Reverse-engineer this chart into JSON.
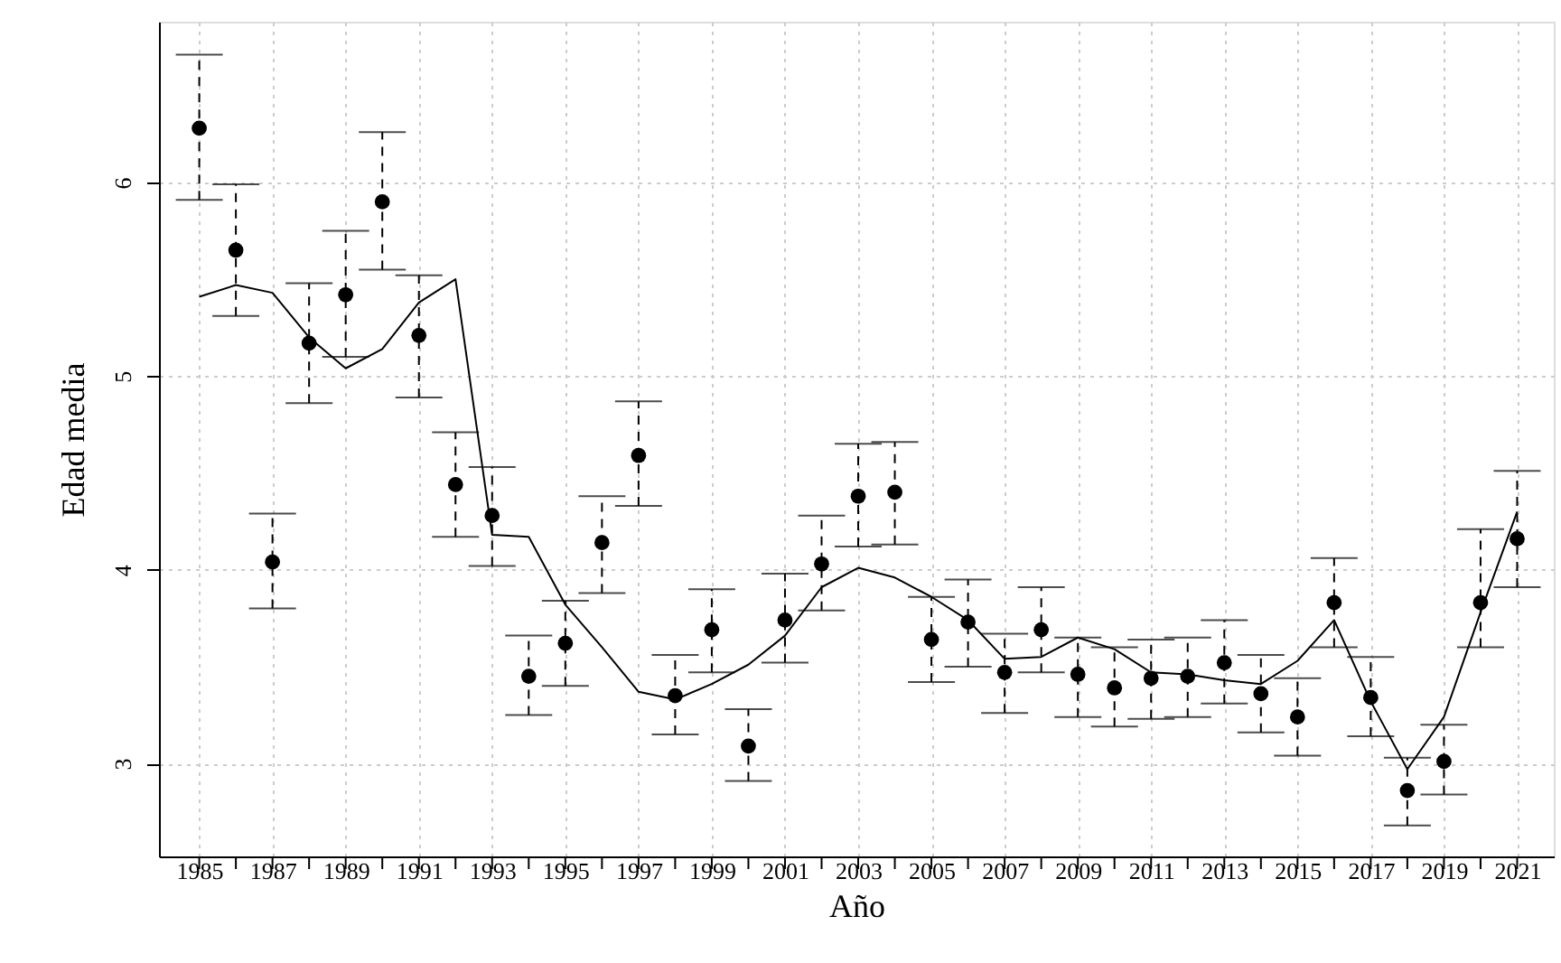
{
  "chart_data": {
    "type": "scatter",
    "xlabel": "Año",
    "ylabel": "Edad media",
    "x": [
      1985,
      1986,
      1987,
      1988,
      1989,
      1990,
      1991,
      1992,
      1993,
      1994,
      1995,
      1996,
      1997,
      1998,
      1999,
      2000,
      2001,
      2002,
      2003,
      2004,
      2005,
      2006,
      2007,
      2008,
      2009,
      2010,
      2011,
      2012,
      2013,
      2014,
      2015,
      2016,
      2017,
      2018,
      2019,
      2020,
      2021
    ],
    "xlim": [
      1983.9,
      2022
    ],
    "ylim": [
      2.52,
      6.83
    ],
    "xticks": [
      1985,
      {
        "value": 1986,
        "label": null
      },
      1987,
      {
        "value": 1988,
        "label": null
      },
      1989,
      {
        "value": 1990,
        "label": null
      },
      1991,
      {
        "value": 1992,
        "label": null
      },
      1993,
      {
        "value": 1994,
        "label": null
      },
      1995,
      {
        "value": 1996,
        "label": null
      },
      1997,
      {
        "value": 1998,
        "label": null
      },
      1999,
      {
        "value": 2000,
        "label": null
      },
      2001,
      {
        "value": 2002,
        "label": null
      },
      2003,
      {
        "value": 2004,
        "label": null
      },
      2005,
      {
        "value": 2006,
        "label": null
      },
      2007,
      {
        "value": 2008,
        "label": null
      },
      2009,
      {
        "value": 2010,
        "label": null
      },
      2011,
      {
        "value": 2012,
        "label": null
      },
      2013,
      {
        "value": 2014,
        "label": null
      },
      2015,
      {
        "value": 2016,
        "label": null
      },
      2017,
      {
        "value": 2018,
        "label": null
      },
      2019,
      {
        "value": 2020,
        "label": null
      },
      2021
    ],
    "yticks": [
      3,
      4,
      5,
      6
    ],
    "grid": true,
    "marker": "circle",
    "series": [
      {
        "color": "#000000",
        "values": [
          6.28,
          5.65,
          4.04,
          5.17,
          5.42,
          5.9,
          5.21,
          4.44,
          4.28,
          3.45,
          3.62,
          4.14,
          4.59,
          3.35,
          3.69,
          3.09,
          3.74,
          4.03,
          4.38,
          4.4,
          3.64,
          3.73,
          3.47,
          3.69,
          3.46,
          3.39,
          3.44,
          3.45,
          3.52,
          3.36,
          3.24,
          3.83,
          3.34,
          2.86,
          3.01,
          3.83,
          4.16
        ],
        "errors": [
          [
            5.91,
            6.66
          ],
          [
            5.31,
            5.99
          ],
          [
            3.8,
            4.29
          ],
          [
            4.86,
            5.48
          ],
          [
            5.1,
            5.75
          ],
          [
            5.55,
            6.26
          ],
          [
            4.89,
            5.52
          ],
          [
            4.17,
            4.71
          ],
          [
            4.02,
            4.53
          ],
          [
            3.25,
            3.66
          ],
          [
            3.4,
            3.84
          ],
          [
            3.88,
            4.38
          ],
          [
            4.33,
            4.87
          ],
          [
            3.15,
            3.56
          ],
          [
            3.47,
            3.9
          ],
          [
            2.91,
            3.28
          ],
          [
            3.52,
            3.98
          ],
          [
            3.79,
            4.28
          ],
          [
            4.12,
            4.65
          ],
          [
            4.13,
            4.66
          ],
          [
            3.42,
            3.86
          ],
          [
            3.5,
            3.95
          ],
          [
            3.26,
            3.67
          ],
          [
            3.47,
            3.91
          ],
          [
            3.24,
            3.65
          ],
          [
            3.19,
            3.6
          ],
          [
            3.23,
            3.64
          ],
          [
            3.24,
            3.65
          ],
          [
            3.31,
            3.74
          ],
          [
            3.16,
            3.56
          ],
          [
            3.04,
            3.44
          ],
          [
            3.6,
            4.06
          ],
          [
            3.14,
            3.55
          ],
          [
            2.68,
            3.03
          ],
          [
            2.84,
            3.2
          ],
          [
            3.6,
            4.21
          ],
          [
            3.91,
            4.51
          ]
        ]
      },
      {
        "type": "line",
        "color": "#000000",
        "line_style": "solid",
        "marker": "none",
        "values": [
          5.41,
          5.47,
          5.43,
          5.2,
          5.04,
          5.14,
          5.38,
          5.5,
          4.18,
          4.17,
          3.82,
          3.6,
          3.37,
          3.33,
          3.41,
          3.51,
          3.66,
          3.91,
          4.01,
          3.96,
          3.86,
          3.74,
          3.54,
          3.55,
          3.65,
          3.59,
          3.47,
          3.46,
          3.43,
          3.41,
          3.53,
          3.74,
          3.32,
          2.97,
          3.24,
          3.78,
          4.3
        ]
      }
    ]
  }
}
